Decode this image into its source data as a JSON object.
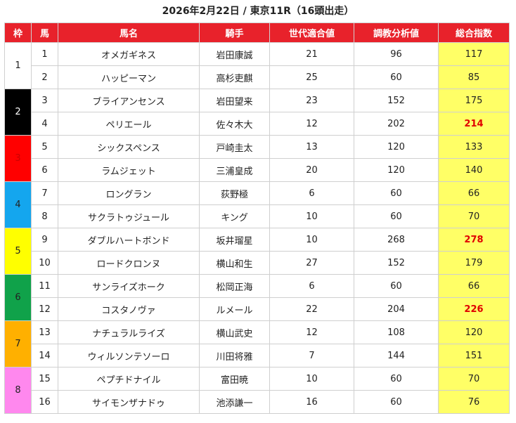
{
  "title": "2026年2月22日 / 東京11R（16頭出走）",
  "headers": [
    "枠",
    "馬",
    "馬名",
    "騎手",
    "世代適合値",
    "調教分析値",
    "総合指数"
  ],
  "waku": [
    {
      "label": "1",
      "color": "#ffffff",
      "text_color": "#222222"
    },
    {
      "label": "2",
      "color": "#000000",
      "text_color": "#ffffff"
    },
    {
      "label": "3",
      "color": "#ff0000",
      "text_color": "#cc0000"
    },
    {
      "label": "4",
      "color": "#14a6ee",
      "text_color": "#222222"
    },
    {
      "label": "5",
      "color": "#ffff00",
      "text_color": "#222222"
    },
    {
      "label": "6",
      "color": "#10a24a",
      "text_color": "#222222"
    },
    {
      "label": "7",
      "color": "#ffb000",
      "text_color": "#222222"
    },
    {
      "label": "8",
      "color": "#ff88ee",
      "text_color": "#222222"
    }
  ],
  "rows": [
    {
      "waku": 1,
      "num": "1",
      "name": "オメガギネス",
      "jockey": "岩田康誠",
      "gen": "21",
      "train": "96",
      "total": "117",
      "high": false
    },
    {
      "waku": 1,
      "num": "2",
      "name": "ハッピーマン",
      "jockey": "高杉吏麒",
      "gen": "25",
      "train": "60",
      "total": "85",
      "high": false
    },
    {
      "waku": 2,
      "num": "3",
      "name": "ブライアンセンス",
      "jockey": "岩田望来",
      "gen": "23",
      "train": "152",
      "total": "175",
      "high": false
    },
    {
      "waku": 2,
      "num": "4",
      "name": "ペリエール",
      "jockey": "佐々木大",
      "gen": "12",
      "train": "202",
      "total": "214",
      "high": true
    },
    {
      "waku": 3,
      "num": "5",
      "name": "シックスペンス",
      "jockey": "戸崎圭太",
      "gen": "13",
      "train": "120",
      "total": "133",
      "high": false
    },
    {
      "waku": 3,
      "num": "6",
      "name": "ラムジェット",
      "jockey": "三浦皇成",
      "gen": "20",
      "train": "120",
      "total": "140",
      "high": false
    },
    {
      "waku": 4,
      "num": "7",
      "name": "ロングラン",
      "jockey": "荻野極",
      "gen": "6",
      "train": "60",
      "total": "66",
      "high": false
    },
    {
      "waku": 4,
      "num": "8",
      "name": "サクラトゥジュール",
      "jockey": "キング",
      "gen": "10",
      "train": "60",
      "total": "70",
      "high": false
    },
    {
      "waku": 5,
      "num": "9",
      "name": "ダブルハートボンド",
      "jockey": "坂井瑠星",
      "gen": "10",
      "train": "268",
      "total": "278",
      "high": true
    },
    {
      "waku": 5,
      "num": "10",
      "name": "ロードクロンヌ",
      "jockey": "横山和生",
      "gen": "27",
      "train": "152",
      "total": "179",
      "high": false
    },
    {
      "waku": 6,
      "num": "11",
      "name": "サンライズホーク",
      "jockey": "松岡正海",
      "gen": "6",
      "train": "60",
      "total": "66",
      "high": false
    },
    {
      "waku": 6,
      "num": "12",
      "name": "コスタノヴァ",
      "jockey": "ルメール",
      "gen": "22",
      "train": "204",
      "total": "226",
      "high": true
    },
    {
      "waku": 7,
      "num": "13",
      "name": "ナチュラルライズ",
      "jockey": "横山武史",
      "gen": "12",
      "train": "108",
      "total": "120",
      "high": false
    },
    {
      "waku": 7,
      "num": "14",
      "name": "ウィルソンテソーロ",
      "jockey": "川田将雅",
      "gen": "7",
      "train": "144",
      "total": "151",
      "high": false
    },
    {
      "waku": 8,
      "num": "15",
      "name": "ペプチドナイル",
      "jockey": "富田暁",
      "gen": "10",
      "train": "60",
      "total": "70",
      "high": false
    },
    {
      "waku": 8,
      "num": "16",
      "name": "サイモンザナドゥ",
      "jockey": "池添謙一",
      "gen": "16",
      "train": "60",
      "total": "76",
      "high": false
    }
  ]
}
